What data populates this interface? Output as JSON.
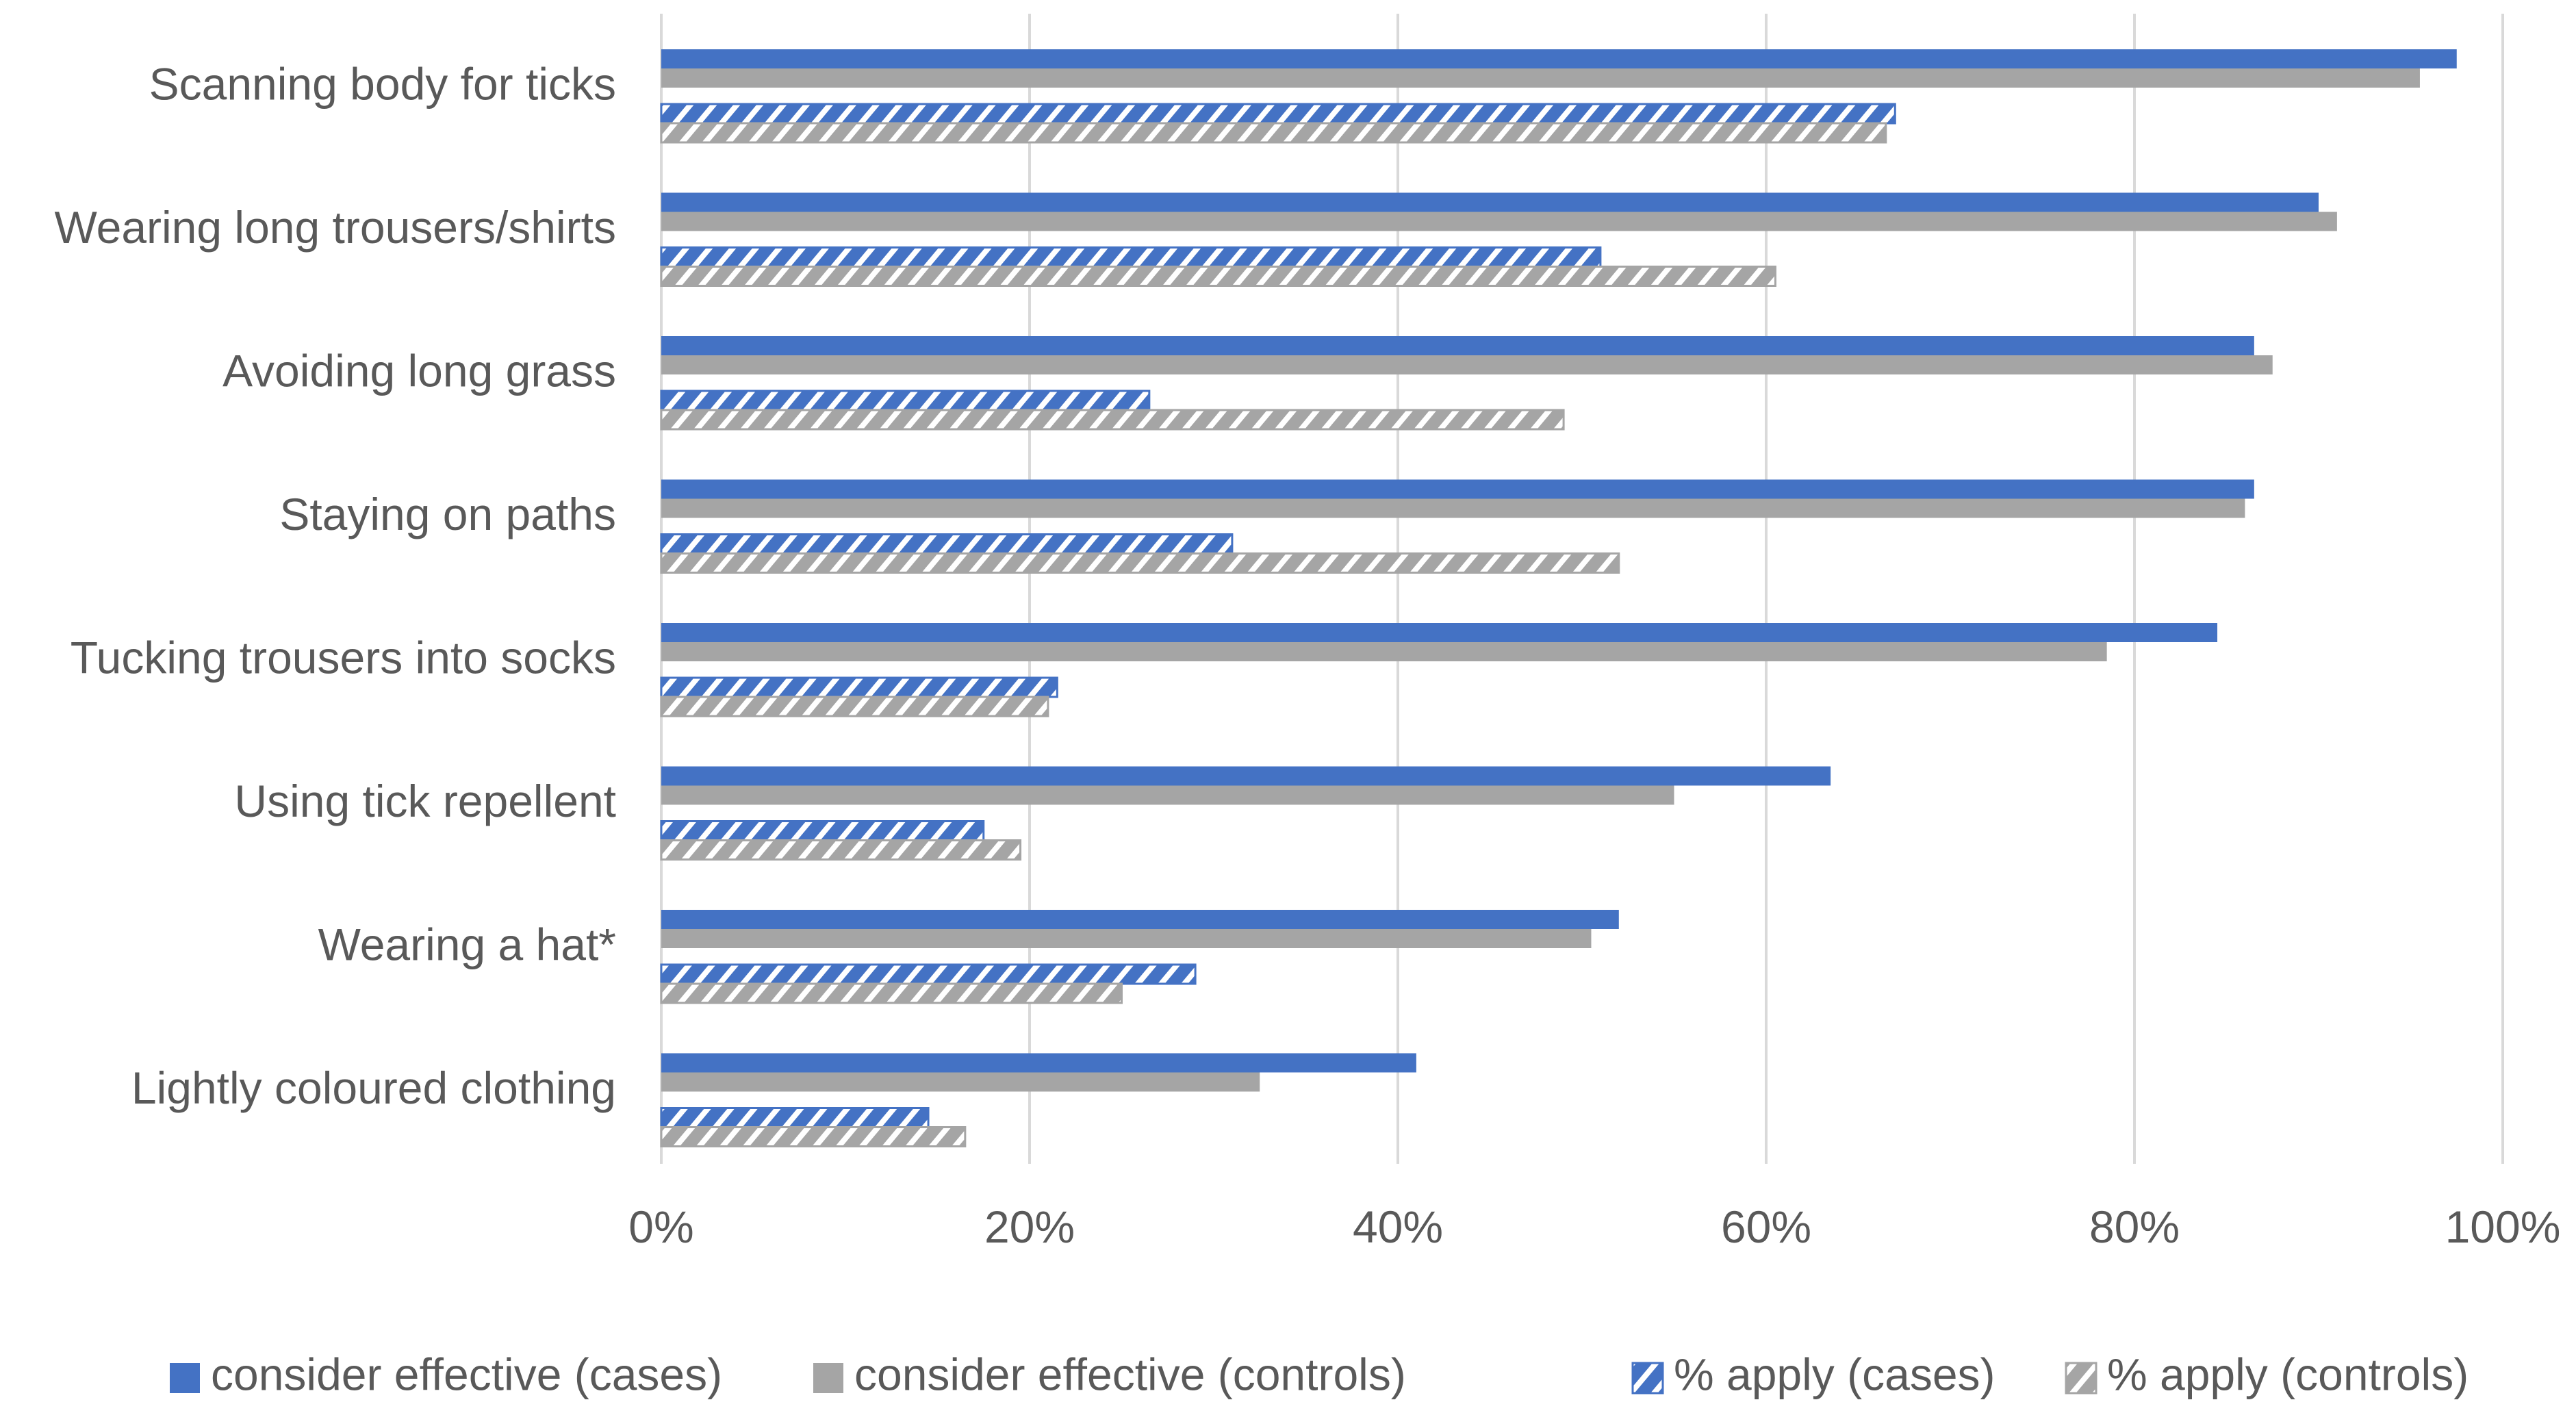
{
  "chart_data": {
    "type": "bar",
    "orientation": "horizontal",
    "title": "",
    "xlabel": "",
    "ylabel": "",
    "xlim": [
      0,
      100
    ],
    "x_ticks": [
      0,
      20,
      40,
      60,
      80,
      100
    ],
    "x_tick_labels": [
      "0%",
      "20%",
      "40%",
      "60%",
      "80%",
      "100%"
    ],
    "grid": true,
    "legend_position": "bottom",
    "categories": [
      "Scanning body for ticks",
      "Wearing long trousers/shirts",
      "Avoiding long grass",
      "Staying on paths",
      "Tucking trousers into socks",
      "Using tick repellent",
      "Wearing a hat*",
      "Lightly coloured clothing"
    ],
    "series": [
      {
        "name": "consider effective (cases)",
        "color": "#4472C4",
        "pattern": "solid",
        "values": [
          97.5,
          90,
          86.5,
          86.5,
          84.5,
          63.5,
          52,
          41
        ]
      },
      {
        "name": "consider effective (controls)",
        "color": "#A5A5A5",
        "pattern": "solid",
        "values": [
          95.5,
          91,
          87.5,
          86,
          78.5,
          55,
          50.5,
          32.5
        ]
      },
      {
        "name": "% apply (cases)",
        "color": "#4472C4",
        "pattern": "hatched",
        "values": [
          67,
          51,
          26.5,
          31,
          21.5,
          17.5,
          29,
          14.5
        ]
      },
      {
        "name": "% apply (controls)",
        "color": "#A5A5A5",
        "pattern": "hatched",
        "values": [
          66.5,
          60.5,
          49,
          52,
          21,
          19.5,
          25,
          16.5
        ]
      }
    ]
  },
  "colors": {
    "gridline": "#D9D9D9",
    "text": "#595959",
    "background": "#FFFFFF"
  }
}
